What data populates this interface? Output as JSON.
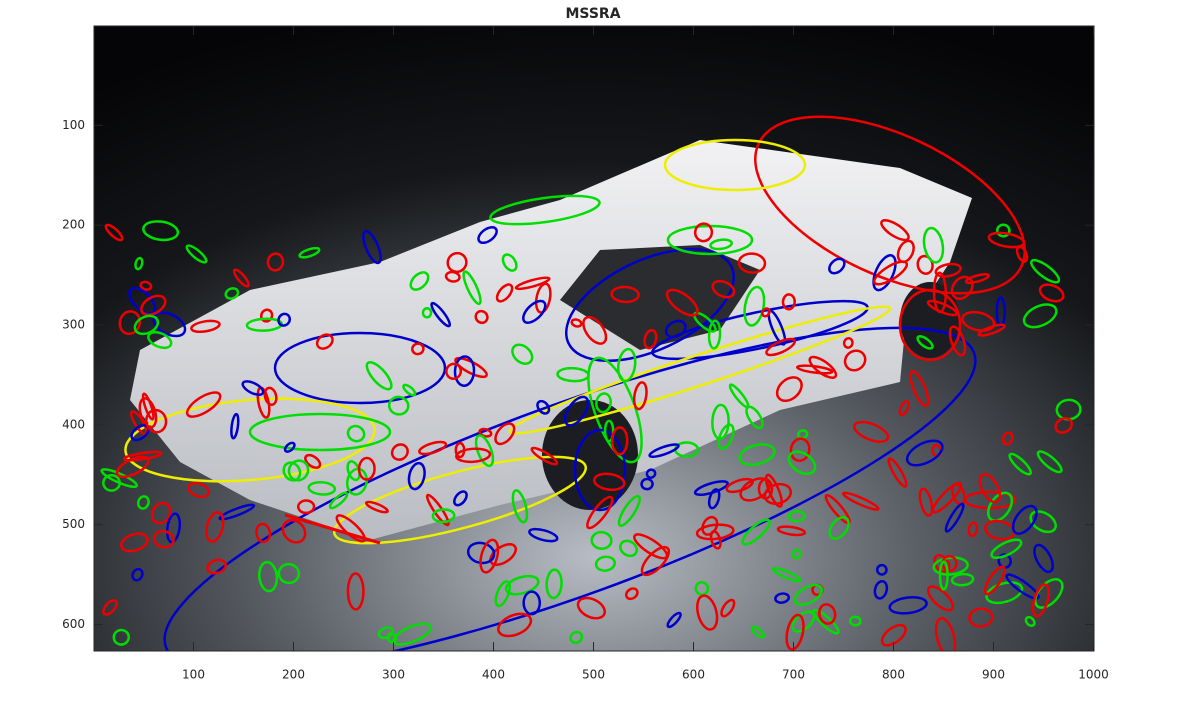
{
  "chart_data": {
    "type": "image",
    "title": "MSSRA",
    "xlim": [
      0.5,
      1000.5
    ],
    "xticks": [
      100,
      200,
      300,
      400,
      500,
      600,
      700,
      800,
      900,
      1000
    ],
    "ylim": [
      626.5,
      0.5
    ],
    "yticks": [
      100,
      200,
      300,
      400,
      500,
      600
    ]
  }
}
